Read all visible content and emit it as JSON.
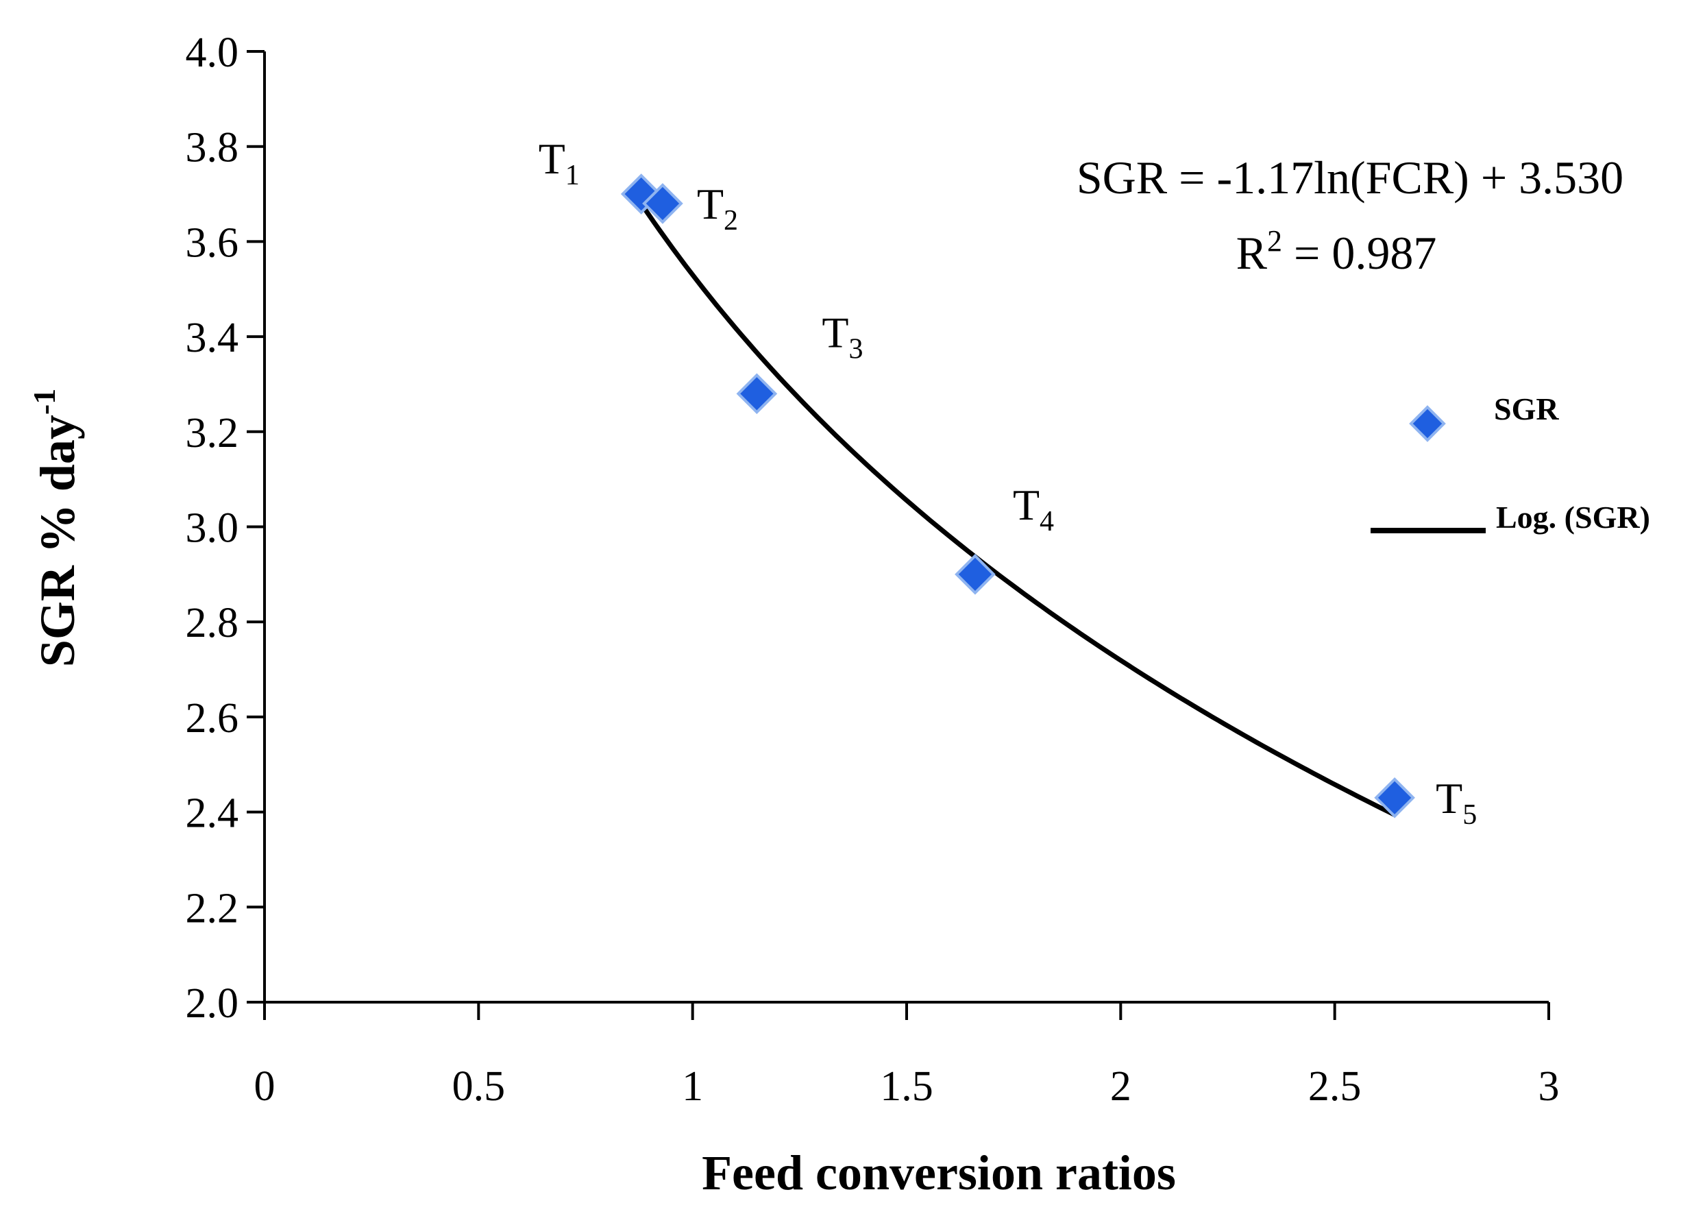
{
  "chart_data": {
    "type": "scatter",
    "title": "",
    "xlabel": "Feed conversion ratios",
    "ylabel": {
      "main": "SGR % day",
      "sup": "-1"
    },
    "xlim": [
      0,
      3
    ],
    "ylim": [
      2.0,
      4.0
    ],
    "xticks": [
      0,
      0.5,
      1,
      1.5,
      2,
      2.5,
      3
    ],
    "xtick_labels": [
      "0",
      "0.5",
      "1",
      "1.5",
      "2",
      "2.5",
      "3"
    ],
    "yticks": [
      2.0,
      2.2,
      2.4,
      2.6,
      2.8,
      3.0,
      3.2,
      3.4,
      3.6,
      3.8,
      4.0
    ],
    "ytick_labels": [
      "2.0",
      "2.2",
      "2.4",
      "2.6",
      "2.8",
      "3.0",
      "3.2",
      "3.4",
      "3.6",
      "3.8",
      "4.0"
    ],
    "grid": false,
    "series": [
      {
        "name": "SGR",
        "marker": "diamond",
        "color": "#1f5fe0",
        "edge_color": "#8fb4f0",
        "points": [
          {
            "label": "T",
            "sub": "1",
            "x": 0.88,
            "y": 3.7
          },
          {
            "label": "T",
            "sub": "2",
            "x": 0.93,
            "y": 3.68
          },
          {
            "label": "T",
            "sub": "3",
            "x": 1.15,
            "y": 3.28
          },
          {
            "label": "T",
            "sub": "4",
            "x": 1.66,
            "y": 2.9
          },
          {
            "label": "T",
            "sub": "5",
            "x": 2.64,
            "y": 2.43
          }
        ]
      }
    ],
    "trendline": {
      "name": "Log. (SGR)",
      "type": "logarithmic",
      "coef_a": -1.17,
      "coef_b": 3.53,
      "x_range": [
        0.88,
        2.64
      ],
      "color": "#000000"
    },
    "annotations": {
      "equation": "SGR = -1.17ln(FCR) + 3.530",
      "r2_prefix": "R",
      "r2_sup": "2",
      "r2_value": " = 0.987"
    },
    "legend": {
      "placement": "right",
      "items": [
        {
          "label": "SGR",
          "kind": "marker"
        },
        {
          "label": "Log. (SGR)",
          "kind": "line"
        }
      ]
    }
  }
}
